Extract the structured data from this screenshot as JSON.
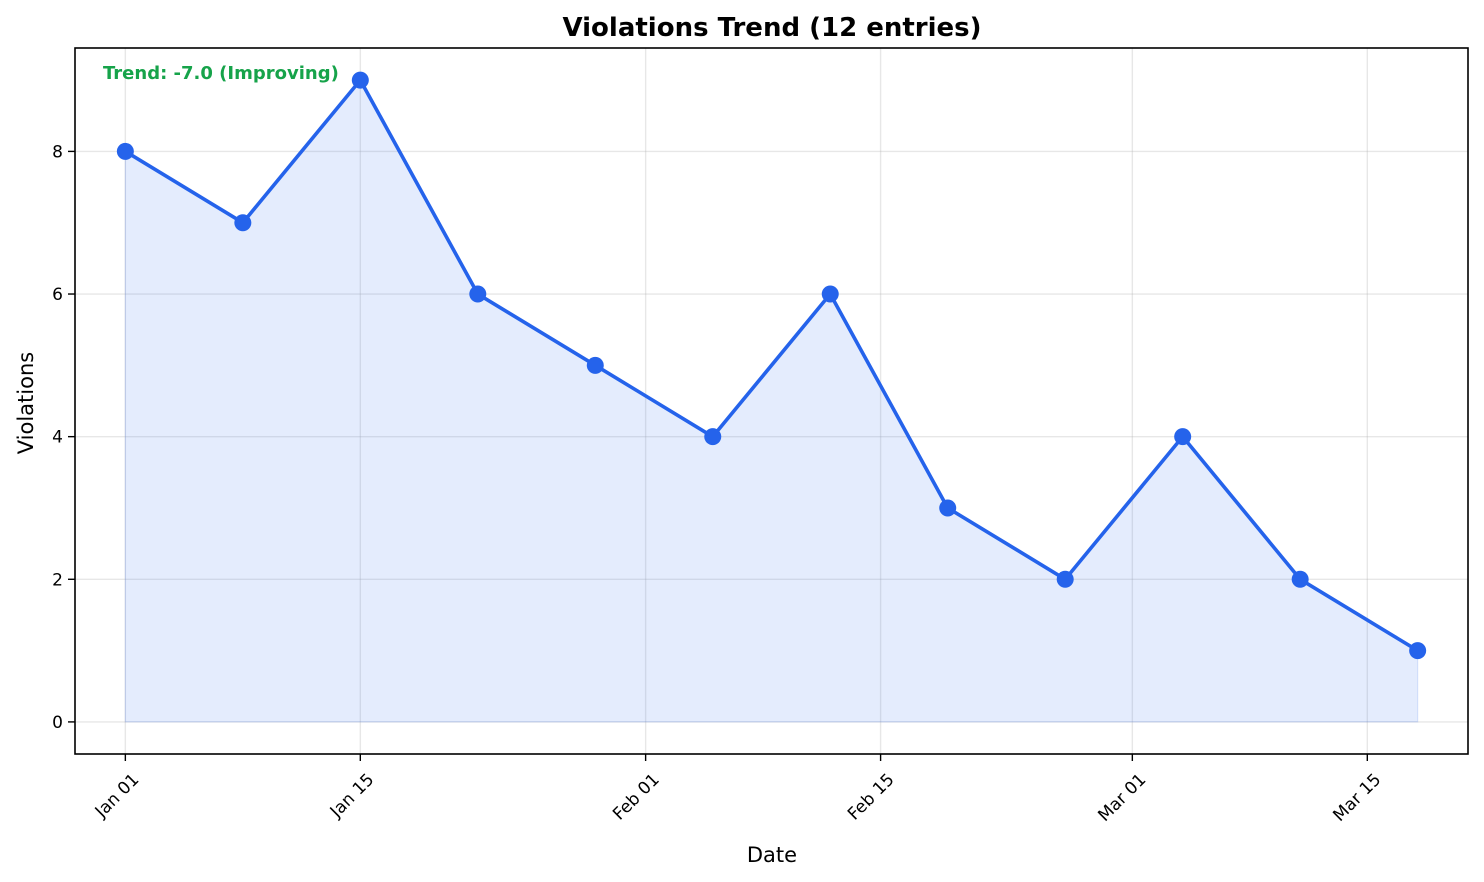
{
  "chart_data": {
    "type": "line",
    "title": "Violations Trend (12 entries)",
    "xlabel": "Date",
    "ylabel": "Violations",
    "x": [
      "2024-01-01",
      "2024-01-08",
      "2024-01-15",
      "2024-01-22",
      "2024-01-29",
      "2024-02-05",
      "2024-02-12",
      "2024-02-19",
      "2024-02-26",
      "2024-03-04",
      "2024-03-11",
      "2024-03-18"
    ],
    "series": [
      {
        "values": [
          8,
          7,
          9,
          6,
          5,
          4,
          6,
          3,
          2,
          4,
          2,
          1
        ],
        "color": "#2563eb"
      }
    ],
    "fill_color": "#2563eb",
    "x_ticks": [
      {
        "date": "2024-01-01",
        "label": "Jan 01"
      },
      {
        "date": "2024-01-15",
        "label": "Jan 15"
      },
      {
        "date": "2024-02-01",
        "label": "Feb 01"
      },
      {
        "date": "2024-02-15",
        "label": "Feb 15"
      },
      {
        "date": "2024-03-01",
        "label": "Mar 01"
      },
      {
        "date": "2024-03-15",
        "label": "Mar 15"
      }
    ],
    "xlim": [
      "2023-12-29",
      "2024-03-21"
    ],
    "y_ticks": [
      0,
      2,
      4,
      6,
      8
    ],
    "ylim": [
      -0.45,
      9.45
    ],
    "grid": true,
    "annotation": {
      "text": "Trend: -7.0 (Improving)",
      "color": "#16a34a"
    }
  }
}
